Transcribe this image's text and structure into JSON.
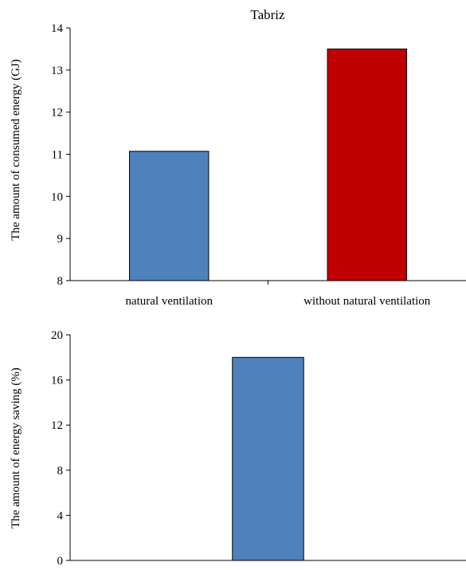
{
  "colors": {
    "blue": "#4f81bd",
    "red": "#c00000",
    "axis": "#000000"
  },
  "chart_data": [
    {
      "type": "bar",
      "title": "Tabriz",
      "xlabel": "",
      "ylabel": "The amount of consumed energy (GJ)",
      "categories": [
        "natural ventilation",
        "without natural ventilation"
      ],
      "values": [
        11.07,
        13.5
      ],
      "bar_colors": [
        "#4f81bd",
        "#c00000"
      ],
      "ylim": [
        8,
        14
      ],
      "yticks": [
        8,
        9,
        10,
        11,
        12,
        13,
        14
      ],
      "grid": false,
      "legend": "none"
    },
    {
      "type": "bar",
      "title": "",
      "xlabel": "",
      "ylabel": "The amount of energy  saving (%)",
      "categories": [
        ""
      ],
      "values": [
        18
      ],
      "bar_colors": [
        "#4f81bd"
      ],
      "ylim": [
        0,
        20
      ],
      "yticks": [
        0,
        4,
        8,
        12,
        16,
        20
      ],
      "grid": false,
      "legend": "none"
    }
  ]
}
